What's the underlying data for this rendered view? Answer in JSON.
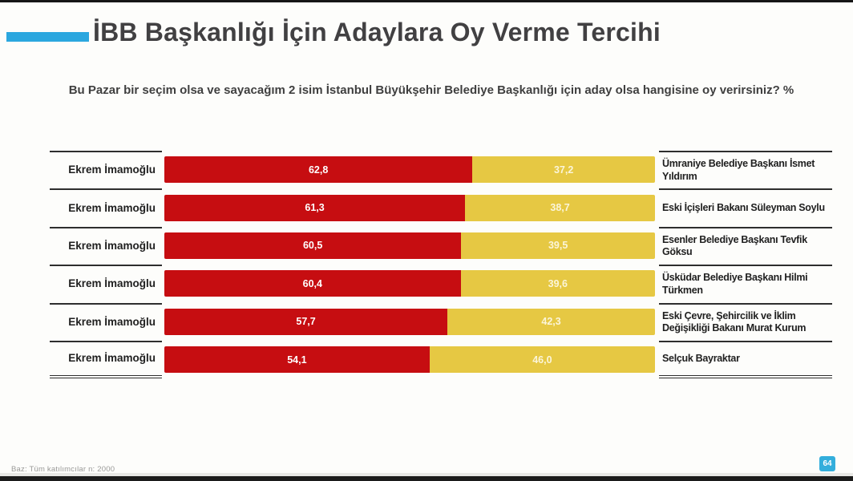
{
  "slide": {
    "title": "İBB Başkanlığı İçin Adaylara Oy Verme Tercihi",
    "subtitle": "Bu Pazar bir seçim olsa ve sayacağım 2 isim İstanbul Büyükşehir Belediye Başkanlığı için aday olsa hangisine oy verirsiniz? %",
    "footer_note": "Baz: Tüm katılımcılar n: 2000",
    "page_number": "64"
  },
  "colors": {
    "accent_blue": "#2BA7DF",
    "bar_red": "#C60D11",
    "bar_yellow": "#E6C843"
  },
  "chart_data": {
    "type": "bar",
    "subtype": "horizontal-stacked-pair",
    "unit": "%",
    "xlim": [
      0,
      100
    ],
    "title": "İBB Başkanlığı İçin Adaylara Oy Verme Tercihi",
    "question": "Bu Pazar bir seçim olsa ve sayacağım 2 isim İstanbul Büyükşehir Belediye Başkanlığı için aday olsa hangisine oy verirsiniz? %",
    "legend_position": "row-labels-left-and-right",
    "rows": [
      {
        "left_label": "Ekrem İmamoğlu",
        "left_value": 62.8,
        "left_value_label": "62,8",
        "right_value": 37.2,
        "right_value_label": "37,2",
        "right_label": "Ümraniye Belediye Başkanı İsmet Yıldırım"
      },
      {
        "left_label": "Ekrem İmamoğlu",
        "left_value": 61.3,
        "left_value_label": "61,3",
        "right_value": 38.7,
        "right_value_label": "38,7",
        "right_label": "Eski İçişleri Bakanı  Süleyman Soylu"
      },
      {
        "left_label": "Ekrem İmamoğlu",
        "left_value": 60.5,
        "left_value_label": "60,5",
        "right_value": 39.5,
        "right_value_label": "39,5",
        "right_label": "Esenler Belediye Başkanı  Tevfik Göksu"
      },
      {
        "left_label": "Ekrem İmamoğlu",
        "left_value": 60.4,
        "left_value_label": "60,4",
        "right_value": 39.6,
        "right_value_label": "39,6",
        "right_label": "Üsküdar Belediye Başkanı Hilmi Türkmen"
      },
      {
        "left_label": "Ekrem İmamoğlu",
        "left_value": 57.7,
        "left_value_label": "57,7",
        "right_value": 42.3,
        "right_value_label": "42,3",
        "right_label": "Eski Çevre, Şehircilik ve İklim Değişikliği Bakanı Murat Kurum"
      },
      {
        "left_label": "Ekrem İmamoğlu",
        "left_value": 54.1,
        "left_value_label": "54,1",
        "right_value": 46.0,
        "right_value_label": "46,0",
        "right_label": "Selçuk Bayraktar"
      }
    ]
  }
}
